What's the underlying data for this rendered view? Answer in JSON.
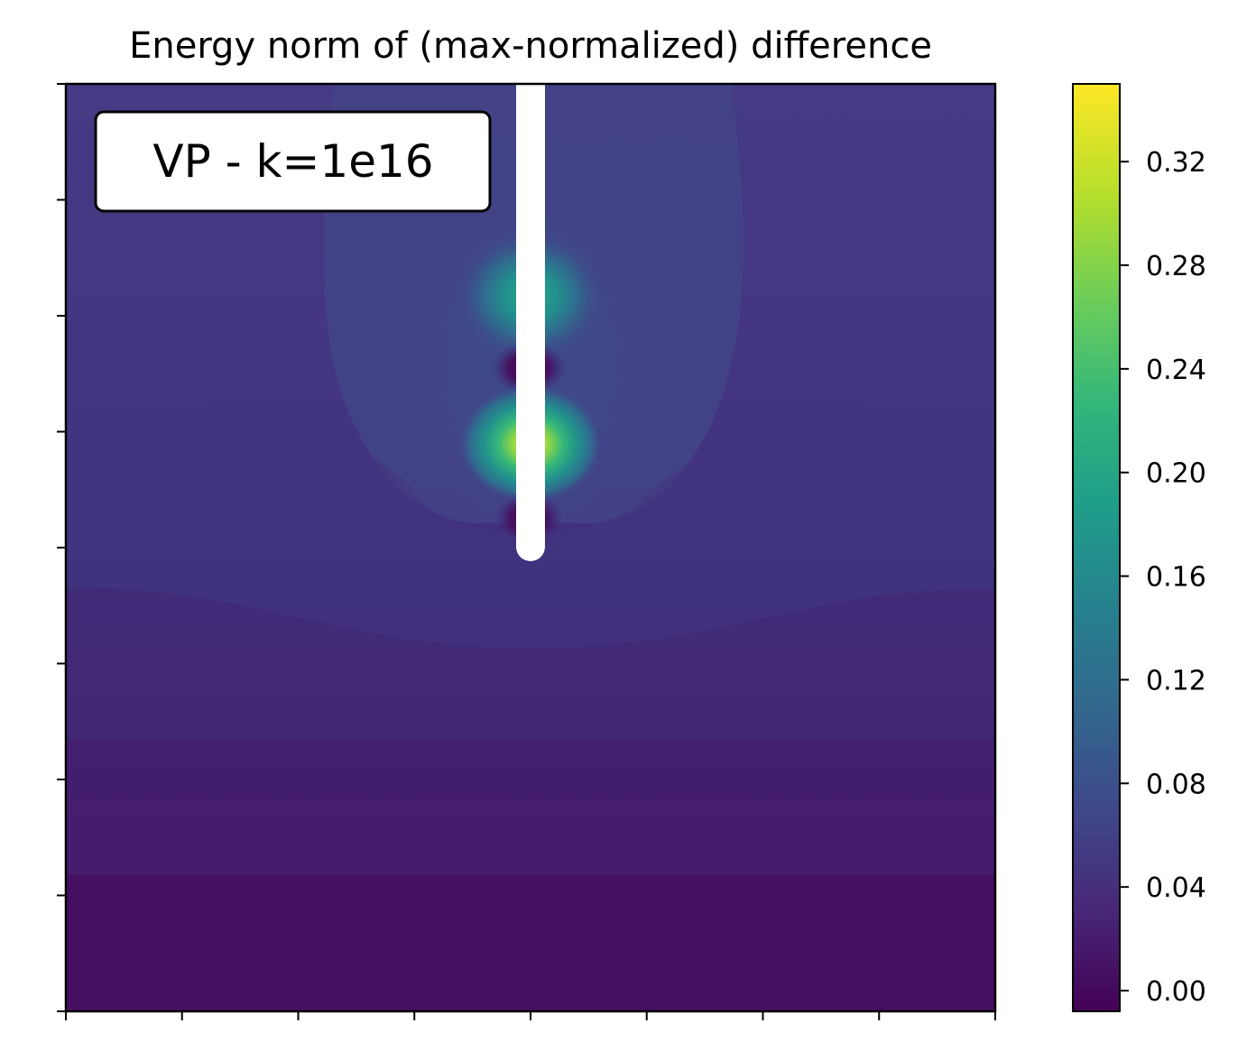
{
  "chart_data": {
    "type": "heatmap",
    "title": "Energy norm of (max-normalized) difference",
    "annotation": "VP - k=1e16",
    "xlabel": "",
    "ylabel": "",
    "x_ticks_labeled": false,
    "y_ticks_labeled": false,
    "colormap": "viridis",
    "colorbar": {
      "range": [
        -0.008,
        0.35
      ],
      "ticks": [
        0.0,
        0.04,
        0.08,
        0.12,
        0.16,
        0.2,
        0.24,
        0.28,
        0.32
      ],
      "tick_labels": [
        "0.00",
        "0.04",
        "0.08",
        "0.12",
        "0.16",
        "0.20",
        "0.24",
        "0.28",
        "0.32"
      ]
    },
    "field_features": [
      {
        "feature": "vertical well / fracture line",
        "color": "#ffffff"
      },
      {
        "feature": "peak (yellow) at lower part of the line",
        "value": 0.35
      },
      {
        "feature": "secondary peak (teal) at upper part of the line",
        "value": 0.18
      },
      {
        "feature": "minima (dark) between and below peaks",
        "value": 0.0
      },
      {
        "feature": "background gradient, higher near top",
        "value_top": 0.06,
        "value_bottom": 0.0
      }
    ]
  },
  "colors": {
    "viridis": [
      "#440154",
      "#482878",
      "#3e4989",
      "#31688e",
      "#26828e",
      "#1f9e89",
      "#35b779",
      "#6ece58",
      "#b5de2b",
      "#fde725"
    ],
    "well": "#ffffff",
    "axes": "#000000"
  }
}
